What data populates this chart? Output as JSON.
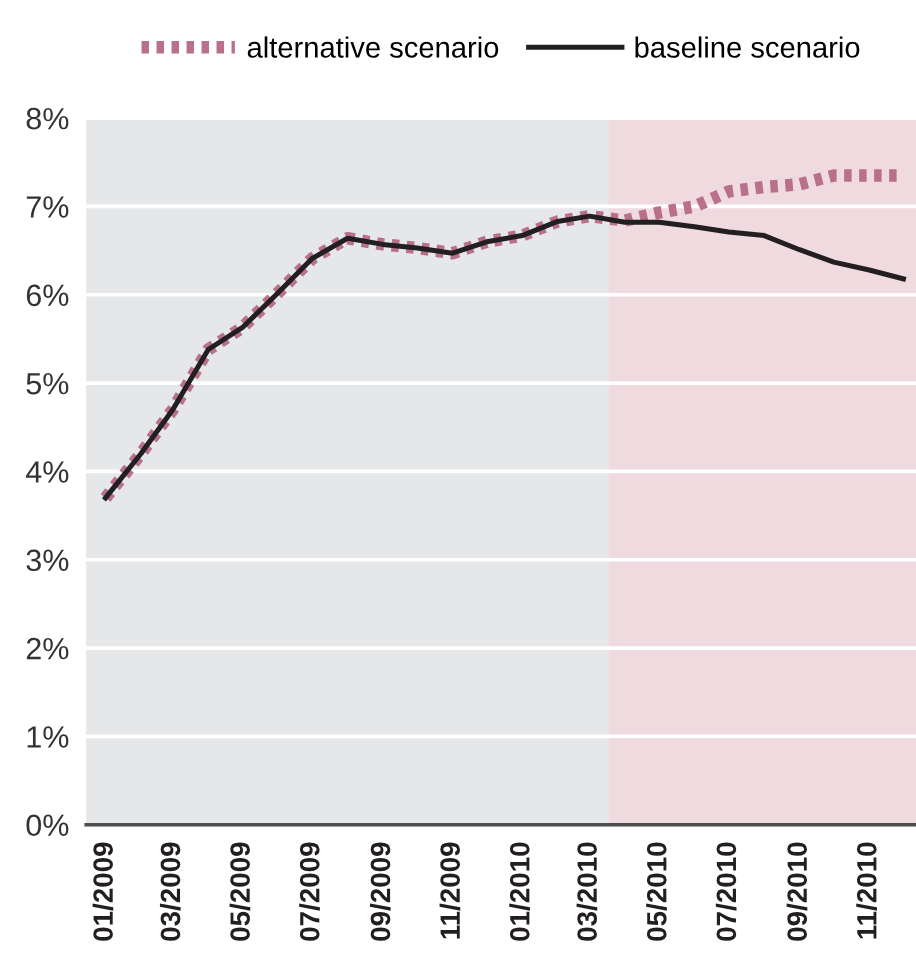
{
  "chart_data": {
    "type": "line",
    "x": [
      "2009-01",
      "2009-02",
      "2009-03",
      "2009-04",
      "2009-05",
      "2009-06",
      "2009-07",
      "2009-08",
      "2009-09",
      "2009-10",
      "2009-11",
      "2009-12",
      "2010-01",
      "2010-02",
      "2010-03",
      "2010-04",
      "2010-05",
      "2010-06",
      "2010-07",
      "2010-08",
      "2010-09",
      "2010-10",
      "2010-11",
      "2010-12"
    ],
    "series": [
      {
        "name": "alternative scenario",
        "color": "#b8708c",
        "line_style": "dotted",
        "values": [
          3.7,
          4.2,
          4.7,
          5.38,
          5.63,
          6.02,
          6.41,
          6.64,
          6.57,
          6.53,
          6.47,
          6.6,
          6.67,
          6.83,
          6.89,
          6.84,
          6.93,
          7.0,
          7.17,
          7.22,
          7.25,
          7.35,
          7.35,
          7.35
        ]
      },
      {
        "name": "baseline scenario",
        "color": "#231f20",
        "line_style": "solid",
        "values": [
          3.7,
          4.2,
          4.7,
          5.38,
          5.63,
          6.02,
          6.41,
          6.64,
          6.57,
          6.53,
          6.47,
          6.6,
          6.67,
          6.83,
          6.89,
          6.82,
          6.82,
          6.77,
          6.71,
          6.67,
          6.51,
          6.37,
          6.28,
          6.18
        ]
      }
    ],
    "xlim": [
      "2008-12-15",
      "2010-12-12"
    ],
    "xticks": [
      {
        "value": "2009-01",
        "label": "01/2009"
      },
      {
        "value": "2009-03",
        "label": "03/2009"
      },
      {
        "value": "2009-05",
        "label": "05/2009"
      },
      {
        "value": "2009-07",
        "label": "07/2009"
      },
      {
        "value": "2009-09",
        "label": "09/2009"
      },
      {
        "value": "2009-11",
        "label": "11/2009"
      },
      {
        "value": "2010-01",
        "label": "01/2010"
      },
      {
        "value": "2010-03",
        "label": "03/2010"
      },
      {
        "value": "2010-05",
        "label": "05/2010"
      },
      {
        "value": "2010-07",
        "label": "07/2010"
      },
      {
        "value": "2010-09",
        "label": "09/2010"
      },
      {
        "value": "2010-11",
        "label": "11/2010"
      }
    ],
    "ylim": [
      0,
      8
    ],
    "yticks": [
      {
        "value": 0,
        "label": "0%"
      },
      {
        "value": 1,
        "label": "1%"
      },
      {
        "value": 2,
        "label": "2%"
      },
      {
        "value": 3,
        "label": "3%"
      },
      {
        "value": 4,
        "label": "4%"
      },
      {
        "value": 5,
        "label": "5%"
      },
      {
        "value": 6,
        "label": "6%"
      },
      {
        "value": 7,
        "label": "7%"
      },
      {
        "value": 8,
        "label": "8%"
      }
    ],
    "bands": [
      {
        "axis": "x",
        "from": "2010-03-18",
        "to": "2010-12-12",
        "color": "#efdae0"
      }
    ],
    "grid": "y",
    "legend": "top",
    "marker": "none"
  }
}
